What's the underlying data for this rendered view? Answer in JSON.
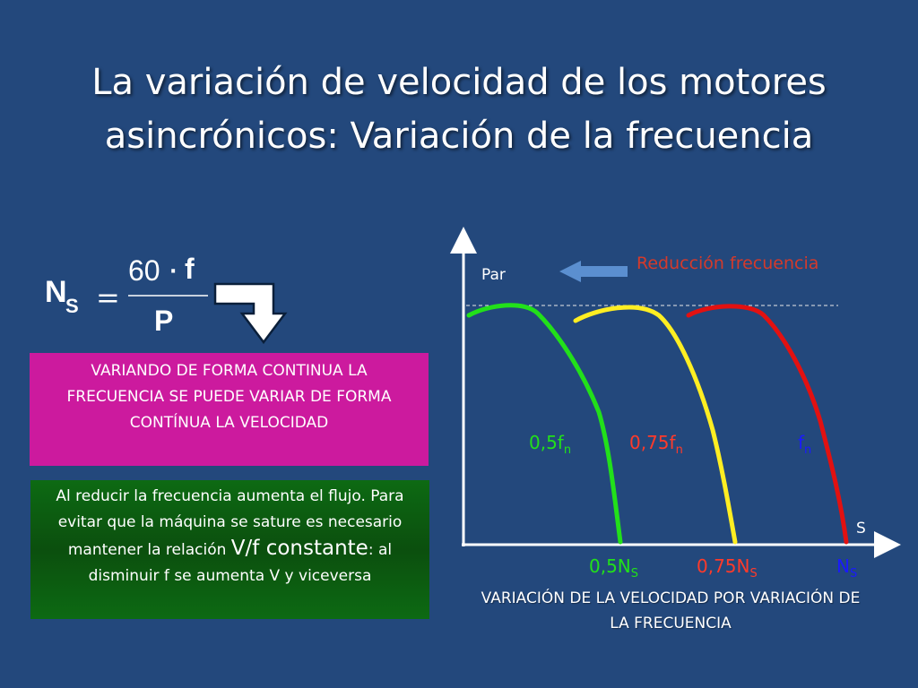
{
  "slide": {
    "title_line1": "La variación de velocidad de los motores",
    "title_line2": "asincrónicos: Variación de la frecuencia"
  },
  "formula": {
    "lhs_main": "N",
    "lhs_sub": "S",
    "equals": "=",
    "numerator_num": "60",
    "numerator_dot": "·",
    "numerator_var": "f",
    "denominator": "P"
  },
  "box_magenta": {
    "line1": "VARIANDO DE FORMA CONTINUA LA",
    "line2": "FRECUENCIA SE PUEDE VARIAR DE FORMA",
    "line3": "CONTÍNUA LA VELOCIDAD",
    "color": "#cc1a9e"
  },
  "box_green": {
    "line1": "Al reducir la frecuencia aumenta el flujo. Para",
    "line2": "evitar que la máquina se sature es necesario",
    "line3_prefix": "mantener la relación ",
    "line3_big": "V/f constante",
    "line3_suffix": ": al",
    "line4": "disminuir f se aumenta V y viceversa",
    "color": "#0b5e10"
  },
  "diagram": {
    "y_axis_label": "Par",
    "x_axis_label": "S",
    "reduction_label": "Reducción frecuencia",
    "reduction_label_color": "#d43a2b",
    "arrow_color": "#5b8fd0",
    "curves": [
      {
        "freq_main": "0,5f",
        "freq_sub": "n",
        "speed_main": "0,5N",
        "speed_sub": "S",
        "color": "#22e01a",
        "label_color": "#22e01a"
      },
      {
        "freq_main": "0,75f",
        "freq_sub": "n",
        "speed_main": "0,75N",
        "speed_sub": "S",
        "color": "#ffee22",
        "label_color": "#ff3a2a"
      },
      {
        "freq_main": "f",
        "freq_sub": "n",
        "speed_main": "N",
        "speed_sub": "S",
        "color": "#e21111",
        "label_color": "#1a1aff"
      }
    ],
    "caption_line1": "VARIACIÓN DE LA VELOCIDAD POR VARIACIÓN DE",
    "caption_line2": "LA FRECUENCIA"
  }
}
